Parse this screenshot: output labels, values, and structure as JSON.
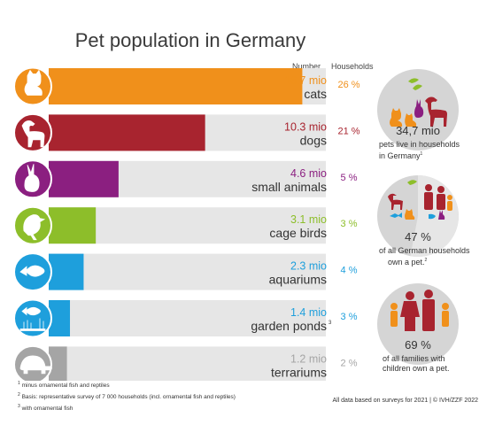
{
  "colors": {
    "cats": "#F0901B",
    "dogs": "#A8242F",
    "small_animals": "#8B1F80",
    "cage_birds": "#8DBE2A",
    "aquariums": "#1E9FDC",
    "garden_ponds": "#1E9FDC",
    "terrariums": "#A5A5A5",
    "track": "#E6E6E6",
    "circle_bg": "#D5D5D5"
  },
  "header": {
    "title": "Pet population in Germany",
    "col_number": "Number",
    "col_households": "Households"
  },
  "chart_data": {
    "type": "bar",
    "title": "Pet population in Germany",
    "categories": [
      "cats",
      "dogs",
      "small animals",
      "cage birds",
      "aquariums",
      "garden ponds",
      "terrariums"
    ],
    "values": [
      16.7,
      10.3,
      4.6,
      3.1,
      2.3,
      1.4,
      1.2
    ],
    "value_labels": [
      "16.7 mio",
      "10.3 mio",
      "4.6 mio",
      "3.1 mio",
      "2.3 mio",
      "1.4 mio",
      "1.2 mio"
    ],
    "households": [
      "26 %",
      "21 %",
      "5 %",
      "3 %",
      "4 %",
      "3 %",
      "2 %"
    ],
    "footnote_marks": [
      "",
      "",
      "",
      "",
      "",
      "3",
      ""
    ],
    "series": [
      {
        "name": "Number",
        "values": [
          16.7,
          10.3,
          4.6,
          3.1,
          2.3,
          1.4,
          1.2
        ]
      }
    ],
    "xlim": [
      0,
      18.25
    ]
  },
  "rows": [
    {
      "icon": "cat-icon"
    },
    {
      "icon": "dog-icon"
    },
    {
      "icon": "rabbit-icon"
    },
    {
      "icon": "bird-icon"
    },
    {
      "icon": "fish-icon"
    },
    {
      "icon": "pond-fish-icon"
    },
    {
      "icon": "turtle-icon"
    }
  ],
  "circles": [
    {
      "stat": "34,7 mio",
      "caption_line1": "pets live in households",
      "caption_line2": "in Germany",
      "mark": "1"
    },
    {
      "stat": "47 %",
      "caption_line1": "of all German households",
      "caption_line2": "own a pet.",
      "mark": "2"
    },
    {
      "stat": "69 %",
      "caption_line1": "of all families with",
      "caption_line2": "children own a pet.",
      "mark": ""
    }
  ],
  "footnotes": {
    "f1_mark": "1",
    "f1": " minus ornamental fish and reptiles",
    "f2_mark": "2",
    "f2": " Basis: representative survey of 7 000 households (incl. ornamental fish and reptiles)",
    "f3_mark": "3",
    "f3": " with ornamental fish"
  },
  "source": "All data based on surveys for 2021 | © IVH/ZZF 2022"
}
